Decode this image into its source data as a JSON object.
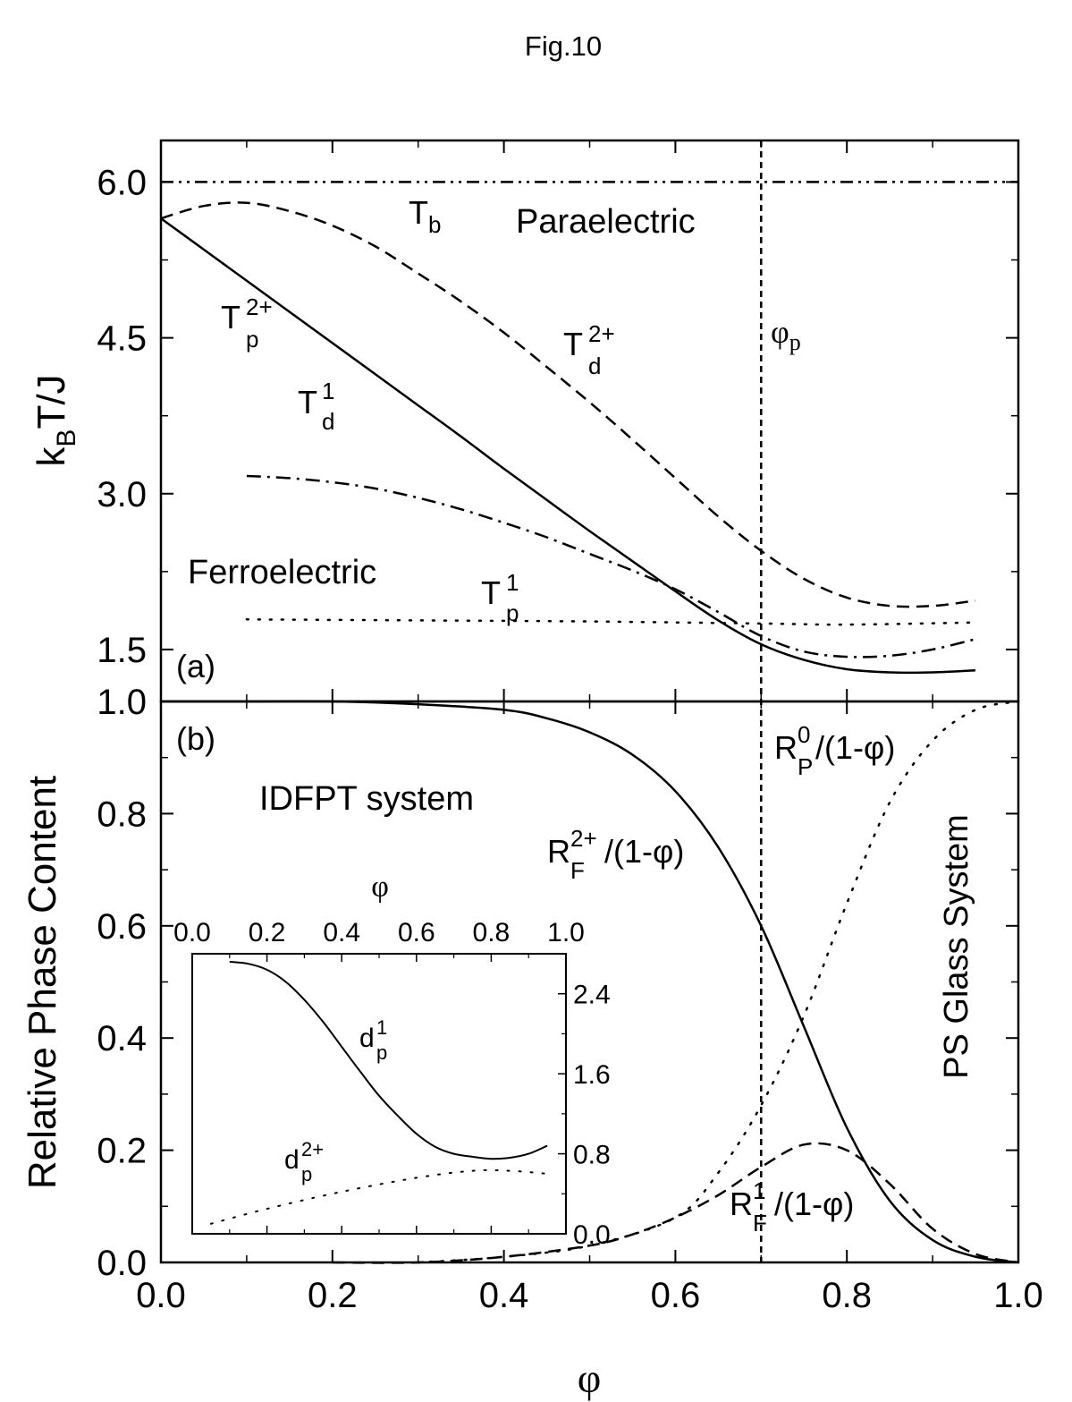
{
  "figure_title": "Fig.10",
  "chart_data": [
    {
      "panel": "(a)",
      "type": "line",
      "ylabel_main": "k",
      "ylabel_sub": "B",
      "ylabel_rest": "T/J",
      "xlim": [
        0.0,
        1.0
      ],
      "ylim": [
        1.0,
        6.4
      ],
      "yticks": [
        1.5,
        3.0,
        4.5,
        6.0
      ],
      "ytick_labels": [
        "1.5",
        "3.0",
        "4.5",
        "6.0"
      ],
      "grid": false,
      "series": [
        {
          "name": "T_b",
          "style": "dash-dot-dot",
          "x": [
            0.0,
            1.0
          ],
          "y": [
            6.0,
            6.0
          ]
        },
        {
          "name": "T_d^2+",
          "style": "dashed",
          "x": [
            0.0,
            0.05,
            0.1,
            0.15,
            0.2,
            0.25,
            0.3,
            0.35,
            0.4,
            0.45,
            0.5,
            0.55,
            0.6,
            0.65,
            0.7,
            0.75,
            0.8,
            0.85,
            0.9,
            0.95
          ],
          "y": [
            5.65,
            5.77,
            5.8,
            5.72,
            5.58,
            5.38,
            5.12,
            4.85,
            4.55,
            4.22,
            3.88,
            3.52,
            3.15,
            2.78,
            2.45,
            2.18,
            2.0,
            1.92,
            1.92,
            1.97
          ]
        },
        {
          "name": "T_p^2+",
          "style": "solid",
          "x": [
            0.0,
            0.05,
            0.1,
            0.15,
            0.2,
            0.25,
            0.3,
            0.35,
            0.4,
            0.45,
            0.5,
            0.55,
            0.6,
            0.65,
            0.7,
            0.75,
            0.8,
            0.85,
            0.9,
            0.95
          ],
          "y": [
            5.65,
            5.35,
            5.05,
            4.75,
            4.45,
            4.15,
            3.85,
            3.55,
            3.24,
            2.94,
            2.64,
            2.35,
            2.06,
            1.78,
            1.55,
            1.4,
            1.31,
            1.28,
            1.28,
            1.3
          ]
        },
        {
          "name": "T_d^1",
          "style": "dash-dot",
          "x": [
            0.1,
            0.15,
            0.2,
            0.25,
            0.3,
            0.35,
            0.4,
            0.45,
            0.5,
            0.55,
            0.6,
            0.65,
            0.7,
            0.75,
            0.8,
            0.85,
            0.9,
            0.95
          ],
          "y": [
            3.17,
            3.15,
            3.11,
            3.05,
            2.96,
            2.85,
            2.72,
            2.58,
            2.42,
            2.26,
            2.08,
            1.86,
            1.63,
            1.48,
            1.43,
            1.44,
            1.5,
            1.6
          ]
        },
        {
          "name": "T_p^1",
          "style": "dotted",
          "x": [
            0.1,
            0.3,
            0.5,
            0.7,
            0.8,
            0.95
          ],
          "y": [
            1.79,
            1.78,
            1.77,
            1.75,
            1.74,
            1.76
          ]
        }
      ],
      "vline": {
        "x": 0.7,
        "label": "φ",
        "label_sub": "p"
      },
      "annotations": {
        "paraelectric": "Paraelectric",
        "ferroelectric": "Ferroelectric",
        "t_b_main": "T",
        "t_b_sub": "b",
        "t_p2_main": "T",
        "t_p2_sup": "2+",
        "t_p2_sub": "p",
        "t_d2_main": "T",
        "t_d2_sup": "2+",
        "t_d2_sub": "d",
        "t_d1_main": "T",
        "t_d1_sup": "1",
        "t_d1_sub": "d",
        "t_p1_main": "T",
        "t_p1_sup": "1",
        "t_p1_sub": "p"
      }
    },
    {
      "panel": "(b)",
      "type": "line",
      "ylabel": "Relative Phase Content",
      "xlabel": "φ",
      "xlim": [
        0.0,
        1.0
      ],
      "ylim": [
        0.0,
        1.0
      ],
      "xticks": [
        0.0,
        0.2,
        0.4,
        0.6,
        0.8,
        1.0
      ],
      "xtick_labels": [
        "0.0",
        "0.2",
        "0.4",
        "0.6",
        "0.8",
        "1.0"
      ],
      "yticks": [
        0.0,
        0.2,
        0.4,
        0.6,
        0.8,
        1.0
      ],
      "ytick_labels": [
        "0.0",
        "0.2",
        "0.4",
        "0.6",
        "0.8",
        "1.0"
      ],
      "grid": false,
      "series": [
        {
          "name": "R_F^2+/(1-φ)",
          "style": "solid",
          "x": [
            0.0,
            0.1,
            0.2,
            0.3,
            0.4,
            0.45,
            0.5,
            0.55,
            0.6,
            0.65,
            0.7,
            0.75,
            0.8,
            0.85,
            0.9,
            0.95,
            1.0
          ],
          "y": [
            1.0,
            1.0,
            1.0,
            0.995,
            0.985,
            0.97,
            0.945,
            0.905,
            0.84,
            0.74,
            0.6,
            0.42,
            0.24,
            0.11,
            0.04,
            0.01,
            0.0
          ]
        },
        {
          "name": "R_P^0/(1-φ)",
          "style": "dotted",
          "x": [
            0.3,
            0.4,
            0.5,
            0.6,
            0.65,
            0.7,
            0.75,
            0.8,
            0.85,
            0.9,
            0.95,
            1.0
          ],
          "y": [
            0.0,
            0.01,
            0.03,
            0.08,
            0.16,
            0.28,
            0.44,
            0.64,
            0.82,
            0.93,
            0.985,
            1.0
          ]
        },
        {
          "name": "R_F^1/(1-φ)",
          "style": "dashed",
          "x": [
            0.2,
            0.3,
            0.4,
            0.5,
            0.55,
            0.6,
            0.65,
            0.7,
            0.75,
            0.8,
            0.85,
            0.9,
            0.95,
            1.0
          ],
          "y": [
            0.0,
            0.0,
            0.01,
            0.03,
            0.05,
            0.08,
            0.12,
            0.17,
            0.21,
            0.2,
            0.14,
            0.06,
            0.015,
            0.0
          ]
        }
      ],
      "vline": {
        "x": 0.7
      },
      "annotations": {
        "idfpt": "IDFPT system",
        "ps_glass": "PS Glass System",
        "rp0_main": "R",
        "rp0_sup": "0",
        "rp0_sub": "P",
        "rp0_tail": "/(1-φ)",
        "rf2_main": "R",
        "rf2_sup": "2+",
        "rf2_sub": "F",
        "rf2_tail": "/(1-φ)",
        "rf1_main": "R",
        "rf1_sup": "1",
        "rf1_sub": "F",
        "rf1_tail": "/(1-φ)"
      }
    },
    {
      "panel": "inset",
      "type": "line",
      "xlabel": "φ",
      "xlim": [
        0.0,
        1.0
      ],
      "ylim": [
        0.0,
        2.8
      ],
      "xticks": [
        0.0,
        0.2,
        0.4,
        0.6,
        0.8,
        1.0
      ],
      "xtick_labels": [
        "0.0",
        "0.2",
        "0.4",
        "0.6",
        "0.8",
        "1.0"
      ],
      "yticks": [
        0.0,
        0.8,
        1.6,
        2.4
      ],
      "ytick_labels": [
        "0.0",
        "0.8",
        "1.6",
        "2.4"
      ],
      "series": [
        {
          "name": "d_p^1",
          "style": "solid",
          "x": [
            0.1,
            0.15,
            0.2,
            0.25,
            0.3,
            0.35,
            0.4,
            0.45,
            0.5,
            0.55,
            0.6,
            0.65,
            0.7,
            0.75,
            0.8,
            0.85,
            0.9,
            0.95
          ],
          "y": [
            2.72,
            2.7,
            2.64,
            2.52,
            2.34,
            2.12,
            1.87,
            1.62,
            1.38,
            1.18,
            1.0,
            0.87,
            0.8,
            0.77,
            0.75,
            0.76,
            0.8,
            0.88
          ]
        },
        {
          "name": "d_p^2+",
          "style": "dotted",
          "x": [
            0.05,
            0.2,
            0.4,
            0.6,
            0.75,
            0.85,
            0.95
          ],
          "y": [
            0.1,
            0.25,
            0.42,
            0.56,
            0.63,
            0.63,
            0.6
          ]
        }
      ],
      "annotations": {
        "dp1_main": "d",
        "dp1_sup": "1",
        "dp1_sub": "p",
        "dp2_main": "d",
        "dp2_sup": "2+",
        "dp2_sub": "p"
      }
    }
  ]
}
